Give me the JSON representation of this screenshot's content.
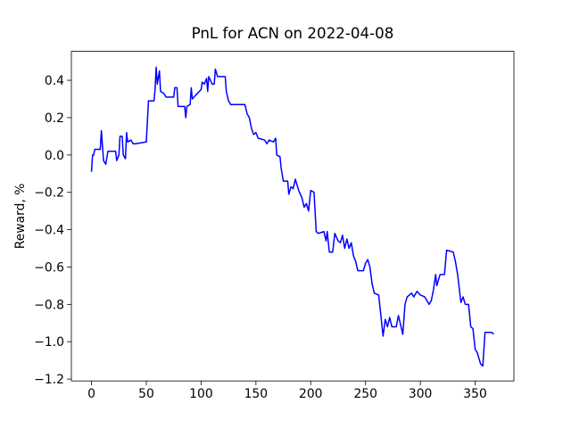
{
  "chart_data": {
    "type": "line",
    "title": "PnL for ACN on 2022-04-08",
    "ylabel": "Reward, %",
    "x": [
      0,
      1,
      2,
      3,
      8,
      9,
      10,
      11,
      13,
      15,
      22,
      23,
      25,
      26,
      28,
      29,
      31,
      32,
      33,
      36,
      38,
      40,
      50,
      52,
      57,
      58,
      59,
      60,
      62,
      63,
      66,
      68,
      75,
      76,
      78,
      79,
      85,
      86,
      87,
      90,
      91,
      92,
      95,
      100,
      101,
      103,
      105,
      106,
      107,
      110,
      112,
      113,
      115,
      122,
      123,
      125,
      127,
      140,
      142,
      144,
      146,
      148,
      150,
      152,
      158,
      160,
      162,
      166,
      168,
      169,
      172,
      173,
      175,
      179,
      180,
      182,
      184,
      186,
      189,
      192,
      194,
      196,
      198,
      200,
      203,
      205,
      207,
      212,
      214,
      215,
      217,
      220,
      222,
      225,
      227,
      229,
      231,
      233,
      235,
      237,
      239,
      241,
      243,
      248,
      250,
      252,
      254,
      256,
      258,
      262,
      264,
      266,
      268,
      270,
      272,
      274,
      278,
      280,
      284,
      286,
      288,
      292,
      294,
      297,
      300,
      304,
      308,
      310,
      312,
      314,
      315,
      318,
      322,
      324,
      330,
      332,
      334,
      337,
      339,
      341,
      344,
      346,
      348,
      350,
      352,
      355,
      357,
      359,
      365,
      367
    ],
    "series": [
      {
        "name": "PnL",
        "color": "#0000ff",
        "values": [
          -0.09,
          0.0,
          0.0,
          0.03,
          0.03,
          0.13,
          0.05,
          -0.03,
          -0.05,
          0.02,
          0.02,
          -0.03,
          0.0,
          0.1,
          0.1,
          0.0,
          -0.02,
          0.12,
          0.07,
          0.08,
          0.06,
          0.06,
          0.07,
          0.29,
          0.29,
          0.35,
          0.47,
          0.38,
          0.45,
          0.34,
          0.33,
          0.31,
          0.31,
          0.36,
          0.36,
          0.26,
          0.26,
          0.2,
          0.26,
          0.27,
          0.36,
          0.3,
          0.32,
          0.35,
          0.39,
          0.38,
          0.41,
          0.34,
          0.42,
          0.38,
          0.38,
          0.46,
          0.42,
          0.42,
          0.34,
          0.29,
          0.27,
          0.27,
          0.22,
          0.2,
          0.14,
          0.11,
          0.12,
          0.09,
          0.08,
          0.06,
          0.08,
          0.07,
          0.09,
          0.0,
          -0.01,
          -0.07,
          -0.14,
          -0.14,
          -0.21,
          -0.17,
          -0.18,
          -0.13,
          -0.19,
          -0.23,
          -0.28,
          -0.26,
          -0.3,
          -0.19,
          -0.2,
          -0.41,
          -0.42,
          -0.41,
          -0.46,
          -0.41,
          -0.52,
          -0.52,
          -0.42,
          -0.46,
          -0.47,
          -0.43,
          -0.5,
          -0.45,
          -0.5,
          -0.47,
          -0.54,
          -0.57,
          -0.62,
          -0.62,
          -0.58,
          -0.56,
          -0.6,
          -0.69,
          -0.74,
          -0.75,
          -0.86,
          -0.97,
          -0.88,
          -0.92,
          -0.87,
          -0.92,
          -0.92,
          -0.86,
          -0.96,
          -0.8,
          -0.76,
          -0.74,
          -0.76,
          -0.73,
          -0.75,
          -0.76,
          -0.8,
          -0.78,
          -0.72,
          -0.64,
          -0.7,
          -0.64,
          -0.64,
          -0.51,
          -0.52,
          -0.57,
          -0.64,
          -0.79,
          -0.76,
          -0.8,
          -0.8,
          -0.92,
          -0.93,
          -1.04,
          -1.06,
          -1.12,
          -1.13,
          -0.95,
          -0.95,
          -0.96
        ]
      }
    ],
    "xlim": [
      -18.35,
      385.35
    ],
    "ylim": [
      -1.21,
      0.555
    ],
    "xticks": [
      0,
      50,
      100,
      150,
      200,
      250,
      300,
      350
    ],
    "yticks": [
      {
        "value": -1.2,
        "label": "−1.2"
      },
      {
        "value": -1.0,
        "label": "−1.0"
      },
      {
        "value": -0.8,
        "label": "−0.8"
      },
      {
        "value": -0.6,
        "label": "−0.6"
      },
      {
        "value": -0.4,
        "label": "−0.4"
      },
      {
        "value": -0.2,
        "label": "−0.2"
      },
      {
        "value": 0,
        "label": "0.0"
      },
      0.2,
      0.4
    ]
  }
}
